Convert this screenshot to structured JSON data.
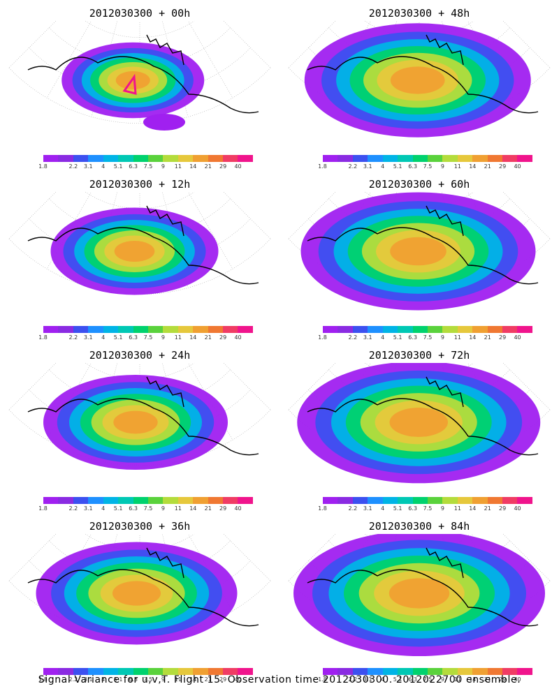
{
  "panels": [
    {
      "title": "2012030300 + 00h"
    },
    {
      "title": "2012030300 + 48h"
    },
    {
      "title": "2012030300 + 12h"
    },
    {
      "title": "2012030300 + 60h"
    },
    {
      "title": "2012030300 + 24h"
    },
    {
      "title": "2012030300 + 72h"
    },
    {
      "title": "2012030300 + 36h"
    },
    {
      "title": "2012030300 + 84h"
    }
  ],
  "colorbar": {
    "labels": [
      "1.8",
      "2.2",
      "3.1",
      "4",
      "5.1",
      "6.3",
      "7.5",
      "9",
      "11",
      "14",
      "21",
      "29",
      "40"
    ],
    "colors": [
      "#a020f0",
      "#8a2be2",
      "#3c50f0",
      "#1e90ff",
      "#00b4e6",
      "#00c8b4",
      "#00d26e",
      "#5ad23c",
      "#b4dc3c",
      "#e6c83c",
      "#f0a032",
      "#f07832",
      "#f03c64",
      "#f0148c"
    ]
  },
  "footer": "Signal Variance for u,v,T. Flight 15. Observation time 2012030300. 2012022700 ensemble."
}
